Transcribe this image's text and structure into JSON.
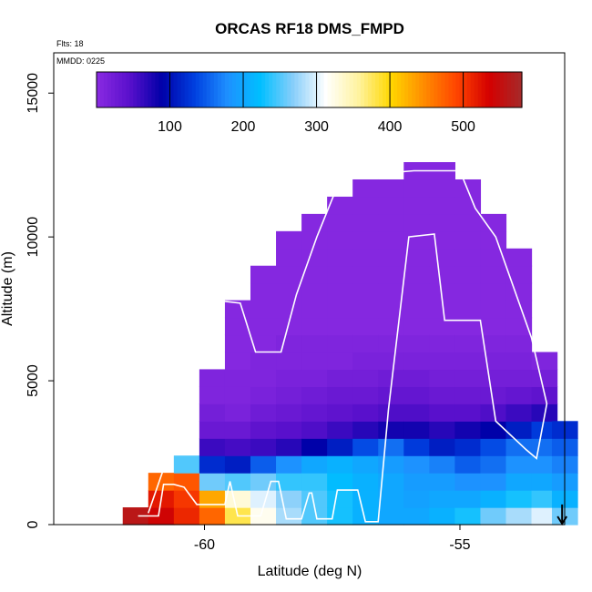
{
  "chart_data": {
    "type": "heatmap",
    "title": "ORCAS RF18 DMS_FMPD",
    "annotations": {
      "flights": "Flts: 18",
      "date": "MMDD: 0225"
    },
    "xlabel": "Latitude (deg N)",
    "ylabel": "Altitude (m)",
    "xlim": [
      -62.95,
      -52.95
    ],
    "ylim": [
      0,
      16400
    ],
    "xticks": [
      -60,
      -55
    ],
    "xtick_labels": [
      "-60",
      "-55"
    ],
    "yticks": [
      0,
      5000,
      10000,
      15000
    ],
    "ytick_labels": [
      "0",
      "5000",
      "10000",
      "15000"
    ],
    "colorbar": {
      "range": [
        0,
        580
      ],
      "ticks": [
        100,
        200,
        300,
        400,
        500
      ],
      "tick_labels": [
        "100",
        "200",
        "300",
        "400",
        "500"
      ],
      "colors": [
        "#8a2be2",
        "#5a10cc",
        "#0000a8",
        "#0040e0",
        "#1e90ff",
        "#00bfff",
        "#87cefa",
        "#ffffff",
        "#fff3a0",
        "#ffd700",
        "#ff8c00",
        "#ff4500",
        "#d40000",
        "#a52a2a"
      ]
    },
    "cells": {
      "x_start": -61.6,
      "dx": 0.5,
      "y_start": 0,
      "dy": 600,
      "columns": [
        {
          "x": -61.6,
          "top": 600,
          "values": [
            560
          ]
        },
        {
          "x": -61.1,
          "top": 1800,
          "values": [
            540,
            520,
            470
          ]
        },
        {
          "x": -60.6,
          "top": 2400,
          "values": [
            510,
            500,
            480,
            250
          ]
        },
        {
          "x": -60.1,
          "top": 5400,
          "values": [
            470,
            430,
            260,
            120,
            60,
            30,
            20,
            10,
            10
          ]
        },
        {
          "x": -59.6,
          "top": 7800,
          "values": [
            380,
            330,
            250,
            110,
            55,
            30,
            15,
            10,
            10,
            5,
            5,
            5,
            5
          ]
        },
        {
          "x": -59.1,
          "top": 9000,
          "values": [
            320,
            300,
            260,
            150,
            60,
            40,
            25,
            15,
            10,
            10,
            5,
            5,
            5,
            5,
            5
          ]
        },
        {
          "x": -58.6,
          "top": 10200,
          "values": [
            280,
            270,
            240,
            180,
            70,
            45,
            30,
            20,
            15,
            10,
            10,
            5,
            5,
            5,
            5,
            5,
            5
          ]
        },
        {
          "x": -58.1,
          "top": 10800,
          "values": [
            250,
            250,
            240,
            200,
            90,
            50,
            35,
            25,
            15,
            10,
            10,
            5,
            5,
            5,
            5,
            5,
            5,
            5
          ]
        },
        {
          "x": -57.6,
          "top": 11400,
          "values": [
            230,
            230,
            220,
            210,
            110,
            60,
            40,
            30,
            20,
            10,
            10,
            5,
            5,
            5,
            5,
            5,
            5,
            5,
            5
          ]
        },
        {
          "x": -57.1,
          "top": 12000,
          "values": [
            210,
            210,
            210,
            200,
            140,
            70,
            45,
            30,
            20,
            15,
            10,
            5,
            5,
            5,
            5,
            5,
            5,
            5,
            5,
            5
          ]
        },
        {
          "x": -56.6,
          "top": 12000,
          "values": [
            200,
            200,
            200,
            190,
            160,
            80,
            50,
            35,
            25,
            15,
            10,
            5,
            5,
            5,
            5,
            5,
            5,
            5,
            5,
            5
          ]
        },
        {
          "x": -56.1,
          "top": 12600,
          "values": [
            200,
            195,
            190,
            180,
            130,
            80,
            50,
            35,
            25,
            15,
            10,
            5,
            5,
            5,
            5,
            5,
            5,
            5,
            5,
            5,
            5
          ]
        },
        {
          "x": -55.6,
          "top": 12600,
          "values": [
            210,
            200,
            190,
            170,
            110,
            70,
            45,
            30,
            20,
            15,
            10,
            5,
            5,
            5,
            5,
            5,
            5,
            5,
            5,
            5,
            5
          ]
        },
        {
          "x": -55.1,
          "top": 12000,
          "values": [
            230,
            200,
            180,
            150,
            120,
            80,
            45,
            30,
            20,
            15,
            10,
            5,
            5,
            5,
            5,
            5,
            5,
            5,
            5,
            5
          ]
        },
        {
          "x": -54.6,
          "top": 10800,
          "values": [
            260,
            210,
            180,
            160,
            140,
            90,
            50,
            30,
            20,
            15,
            10,
            5,
            5,
            5,
            5,
            5,
            5,
            5
          ]
        },
        {
          "x": -54.1,
          "top": 9600,
          "values": [
            280,
            230,
            200,
            180,
            160,
            110,
            60,
            35,
            20,
            15,
            10,
            5,
            5,
            5,
            5,
            5
          ]
        },
        {
          "x": -53.6,
          "top": 6000,
          "values": [
            300,
            240,
            200,
            180,
            160,
            130,
            70,
            40,
            20,
            10
          ]
        },
        {
          "x": -53.2,
          "top": 3600,
          "values": [
            260,
            210,
            190,
            170,
            150,
            120
          ]
        }
      ]
    },
    "flight_track": [
      [
        -61.3,
        300
      ],
      [
        -60.9,
        300
      ],
      [
        -60.8,
        1400
      ],
      [
        -60.6,
        1400
      ],
      [
        -60.4,
        1300
      ],
      [
        -60.15,
        700
      ],
      [
        -59.6,
        700
      ],
      [
        -59.5,
        1500
      ],
      [
        -59.35,
        300
      ],
      [
        -58.9,
        300
      ],
      [
        -58.7,
        1500
      ],
      [
        -58.55,
        1500
      ],
      [
        -58.4,
        200
      ],
      [
        -58.1,
        200
      ],
      [
        -57.95,
        1100
      ],
      [
        -57.9,
        1100
      ],
      [
        -57.8,
        200
      ],
      [
        -57.5,
        200
      ],
      [
        -57.4,
        1200
      ],
      [
        -57.0,
        1200
      ],
      [
        -56.85,
        100
      ],
      [
        -56.6,
        100
      ],
      [
        -56.4,
        4000
      ],
      [
        -56.0,
        10000
      ],
      [
        -55.5,
        10100
      ],
      [
        -55.3,
        7100
      ],
      [
        -54.6,
        7100
      ],
      [
        -54.3,
        3600
      ],
      [
        -53.7,
        2600
      ],
      [
        -53.5,
        2300
      ],
      [
        -53.3,
        4200
      ],
      [
        -53.6,
        6500
      ],
      [
        -54.3,
        10000
      ],
      [
        -54.7,
        11000
      ],
      [
        -55.0,
        12300
      ],
      [
        -55.9,
        12300
      ],
      [
        -56.6,
        12200
      ],
      [
        -57.3,
        12200
      ],
      [
        -57.8,
        10000
      ],
      [
        -58.2,
        8000
      ],
      [
        -58.5,
        6000
      ],
      [
        -59.0,
        6000
      ],
      [
        -59.3,
        7700
      ],
      [
        -59.8,
        7800
      ],
      [
        -60.4,
        4000
      ],
      [
        -61.1,
        400
      ]
    ],
    "arrow": {
      "x": -53.0,
      "from": 700,
      "to": 0
    }
  }
}
